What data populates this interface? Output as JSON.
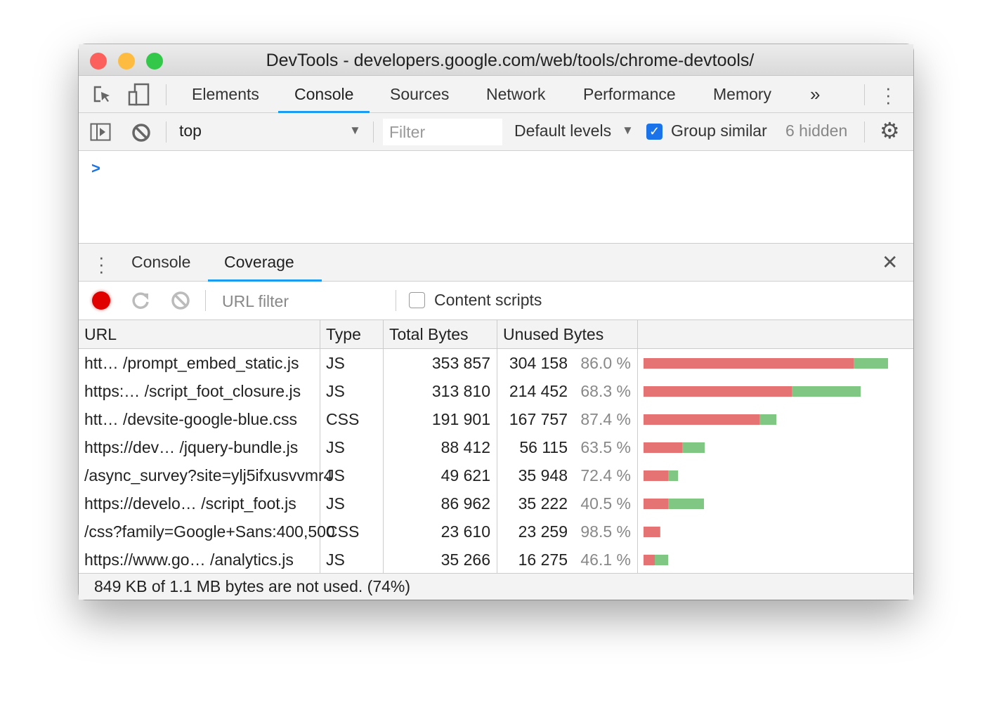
{
  "window": {
    "title": "DevTools - developers.google.com/web/tools/chrome-devtools/"
  },
  "main_tabs": [
    {
      "label": "Elements"
    },
    {
      "label": "Console",
      "active": true
    },
    {
      "label": "Sources"
    },
    {
      "label": "Network"
    },
    {
      "label": "Performance"
    },
    {
      "label": "Memory"
    }
  ],
  "more_tabs_label": "»",
  "console_toolbar": {
    "context": "top",
    "filter_placeholder": "Filter",
    "levels": "Default levels",
    "group_similar_label": "Group similar",
    "group_similar_checked": true,
    "hidden": "6 hidden"
  },
  "console_prompt": ">",
  "drawer_tabs": [
    {
      "label": "Console"
    },
    {
      "label": "Coverage",
      "active": true,
      "closable": true
    }
  ],
  "coverage_toolbar": {
    "url_filter_placeholder": "URL filter",
    "content_scripts_label": "Content scripts",
    "content_scripts_checked": false
  },
  "table": {
    "headers": [
      "URL",
      "Type",
      "Total Bytes",
      "Unused Bytes",
      ""
    ],
    "rows": [
      {
        "url": "htt… /prompt_embed_static.js",
        "type": "JS",
        "total": "353 857",
        "unused": "304 158",
        "pct": "86.0 %",
        "total_n": 353857,
        "unused_n": 304158
      },
      {
        "url": "https:… /script_foot_closure.js",
        "type": "JS",
        "total": "313 810",
        "unused": "214 452",
        "pct": "68.3 %",
        "total_n": 313810,
        "unused_n": 214452
      },
      {
        "url": "htt… /devsite-google-blue.css",
        "type": "CSS",
        "total": "191 901",
        "unused": "167 757",
        "pct": "87.4 %",
        "total_n": 191901,
        "unused_n": 167757
      },
      {
        "url": "https://dev… /jquery-bundle.js",
        "type": "JS",
        "total": "88 412",
        "unused": "56 115",
        "pct": "63.5 %",
        "total_n": 88412,
        "unused_n": 56115
      },
      {
        "url": "/async_survey?site=ylj5ifxusvvmr4",
        "type": "JS",
        "total": "49 621",
        "unused": "35 948",
        "pct": "72.4 %",
        "total_n": 49621,
        "unused_n": 35948
      },
      {
        "url": "https://develo… /script_foot.js",
        "type": "JS",
        "total": "86 962",
        "unused": "35 222",
        "pct": "40.5 %",
        "total_n": 86962,
        "unused_n": 35222
      },
      {
        "url": "/css?family=Google+Sans:400,500",
        "type": "CSS",
        "total": "23 610",
        "unused": "23 259",
        "pct": "98.5 %",
        "total_n": 23610,
        "unused_n": 23259
      },
      {
        "url": "https://www.go… /analytics.js",
        "type": "JS",
        "total": "35 266",
        "unused": "16 275",
        "pct": "46.1 %",
        "total_n": 35266,
        "unused_n": 16275
      }
    ]
  },
  "footer": "849 KB of 1.1 MB bytes are not used. (74%)",
  "colors": {
    "unused": "#e57373",
    "used": "#81c784",
    "accent": "#1a9cf0",
    "record": "#e00000"
  }
}
